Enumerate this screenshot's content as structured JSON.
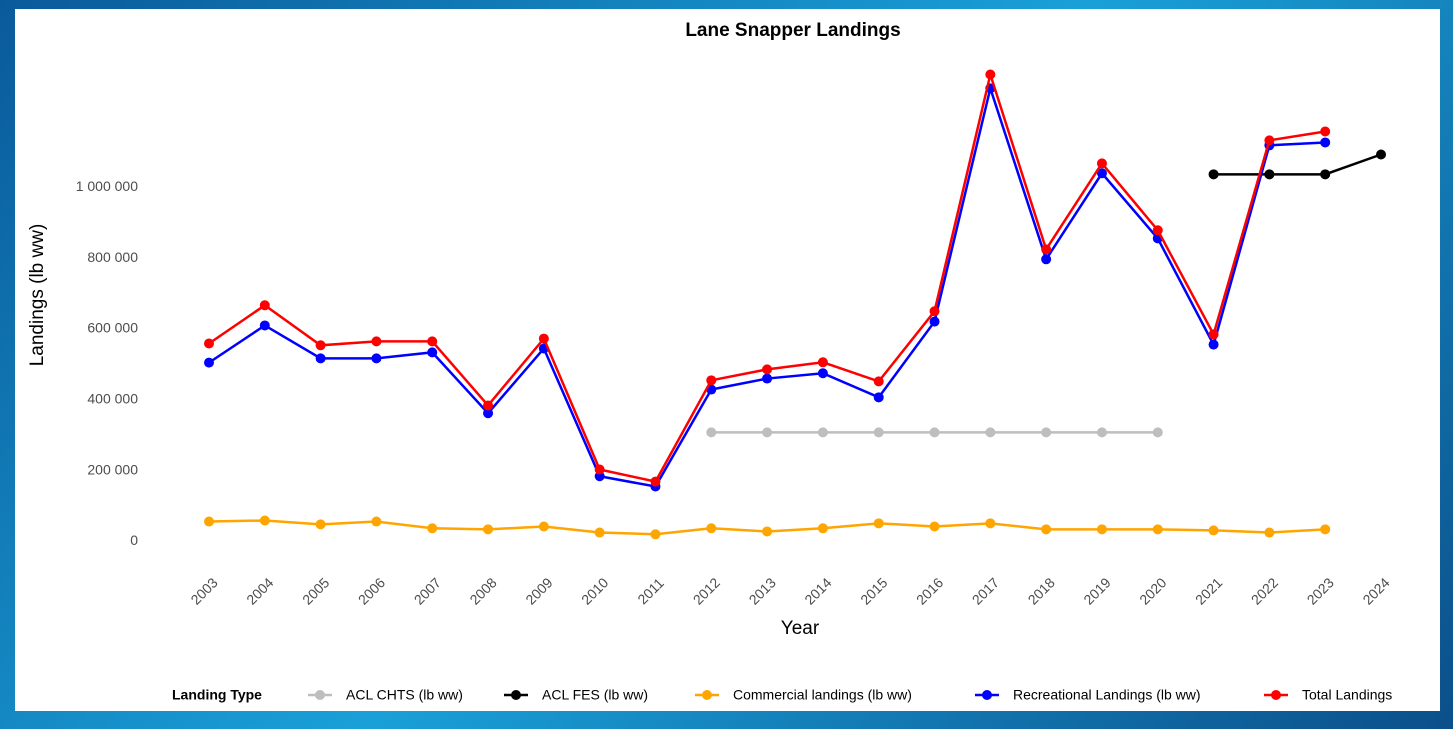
{
  "chart_data": {
    "type": "line",
    "title": "Lane Snapper Landings",
    "x_label": "Year",
    "y_label": "Landings (lb ww)",
    "legend": "bottom",
    "legend_title": "Landing Type",
    "grid": false,
    "categories": [
      "2003",
      "2004",
      "2005",
      "2006",
      "2007",
      "2008",
      "2009",
      "2010",
      "2011",
      "2012",
      "2013",
      "2014",
      "2015",
      "2016",
      "2017",
      "2018",
      "2019",
      "2020",
      "2021",
      "2022",
      "2023",
      "2024"
    ],
    "ylim": [
      -30000,
      1360000
    ],
    "yticks": [
      0,
      {
        "value": 200000,
        "label": "200 000"
      },
      {
        "value": 400000,
        "label": "400 000"
      },
      {
        "value": 600000,
        "label": "600 000"
      },
      {
        "value": 800000,
        "label": "800 000"
      },
      {
        "value": 1000000,
        "label": "1 000 000"
      }
    ],
    "series": [
      {
        "name": "ACL CHTS (lb ww)",
        "color": "#bebebe",
        "values": [
          null,
          null,
          null,
          null,
          null,
          null,
          null,
          null,
          null,
          308000,
          308000,
          308000,
          308000,
          308000,
          308000,
          308000,
          308000,
          308000,
          null,
          null,
          null,
          null
        ]
      },
      {
        "name": "ACL FES (lb ww)",
        "color": "#000000",
        "values": [
          null,
          null,
          null,
          null,
          null,
          null,
          null,
          null,
          null,
          null,
          null,
          null,
          null,
          null,
          null,
          null,
          null,
          null,
          1037000,
          1037000,
          1037000,
          1093000
        ]
      },
      {
        "name": "Commercial landings (lb ww)",
        "color": "#ffa500",
        "values": [
          56000,
          59000,
          48000,
          56000,
          37000,
          34000,
          42000,
          25000,
          20000,
          37000,
          28000,
          37000,
          51000,
          42000,
          51000,
          34000,
          34000,
          34000,
          31000,
          25000,
          34000,
          null
        ]
      },
      {
        "name": "Recreational Landings (lb ww)",
        "color": "#0000ff",
        "values": [
          505000,
          610000,
          517000,
          517000,
          534000,
          362000,
          545000,
          184000,
          155000,
          429000,
          460000,
          475000,
          407000,
          621000,
          1280000,
          797000,
          1040000,
          856000,
          556000,
          1119000,
          1127000,
          null
        ]
      },
      {
        "name": "Total Landings",
        "color": "#ff0000",
        "values": [
          559000,
          667000,
          554000,
          565000,
          565000,
          384000,
          573000,
          203000,
          169000,
          455000,
          486000,
          506000,
          452000,
          650000,
          1319000,
          825000,
          1068000,
          879000,
          585000,
          1133000,
          1158000,
          null
        ]
      }
    ]
  }
}
